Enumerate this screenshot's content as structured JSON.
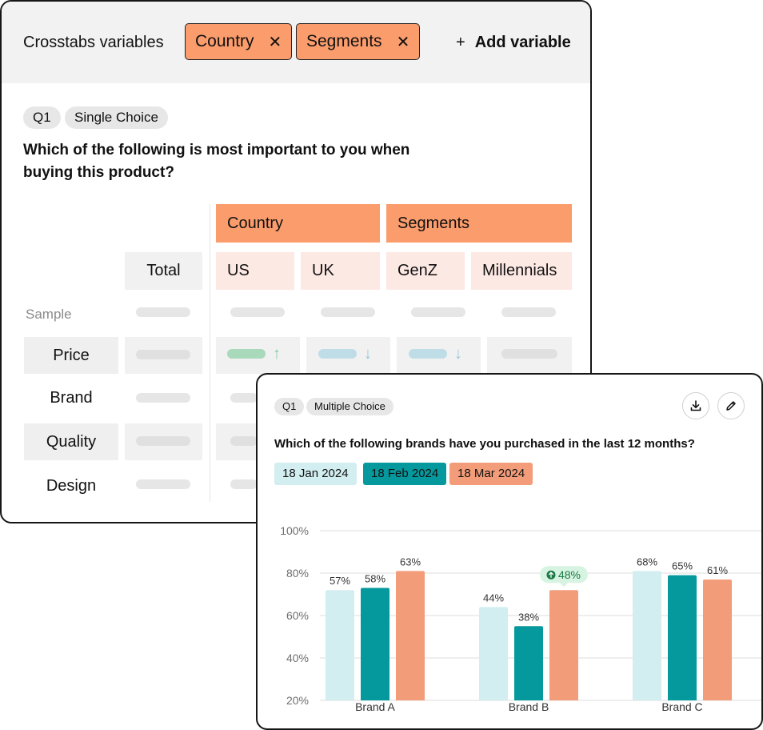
{
  "crosstabs": {
    "header": {
      "label": "Crosstabs variables",
      "chips": [
        {
          "label": "Country",
          "remove": "✕"
        },
        {
          "label": "Segments",
          "remove": "✕"
        }
      ],
      "add_plus": "+",
      "add_label": "Add variable"
    },
    "tags": [
      "Q1",
      "Single Choice"
    ],
    "question": "Which of the following is most important to you when buying this product?",
    "table": {
      "groups": [
        "Country",
        "Segments"
      ],
      "total_label": "Total",
      "columns": [
        "US",
        "UK",
        "GenZ",
        "Millennials"
      ],
      "sample_label": "Sample",
      "rows": [
        "Price",
        "Brand",
        "Quality",
        "Design"
      ],
      "indicators": {
        "up": "↑",
        "down": "↓"
      }
    }
  },
  "chart_card": {
    "tags": [
      "Q1",
      "Multiple Choice"
    ],
    "icons": {
      "download": "download-icon",
      "edit": "pencil-icon"
    },
    "question": "Which of the following brands have you purchased in the last 12 months?",
    "dates": [
      "18 Jan 2024",
      "18 Feb 2024",
      "18 Mar 2024"
    ],
    "colors": {
      "jan": "#d3eef0",
      "feb": "#05999d",
      "mar": "#f39c79",
      "badge": "#d7f3e2",
      "badge_icon": "#1b7a45"
    },
    "highlight": {
      "label": "48%",
      "series": 2,
      "category": 1
    }
  },
  "chart_data": {
    "type": "bar",
    "categories": [
      "Brand A",
      "Brand B",
      "Brand C"
    ],
    "series": [
      {
        "name": "18 Jan 2024",
        "values": [
          57,
          44,
          68
        ]
      },
      {
        "name": "18 Feb 2024",
        "values": [
          58,
          38,
          65
        ]
      },
      {
        "name": "18 Mar 2024",
        "values": [
          63,
          48,
          61
        ]
      }
    ],
    "bar_heights": [
      [
        72,
        64,
        81
      ],
      [
        73,
        55,
        79
      ],
      [
        81,
        72,
        77
      ]
    ],
    "data_labels": [
      [
        "57%",
        "44%",
        "68%"
      ],
      [
        "58%",
        "38%",
        "65%"
      ],
      [
        "63%",
        "48%",
        "61%"
      ]
    ],
    "ylim": [
      20,
      100
    ],
    "yticks": [
      "100%",
      "80%",
      "60%",
      "40%",
      "20%"
    ],
    "ytick_values": [
      100,
      80,
      60,
      40,
      20
    ],
    "grid": true,
    "legend": "top-left"
  }
}
